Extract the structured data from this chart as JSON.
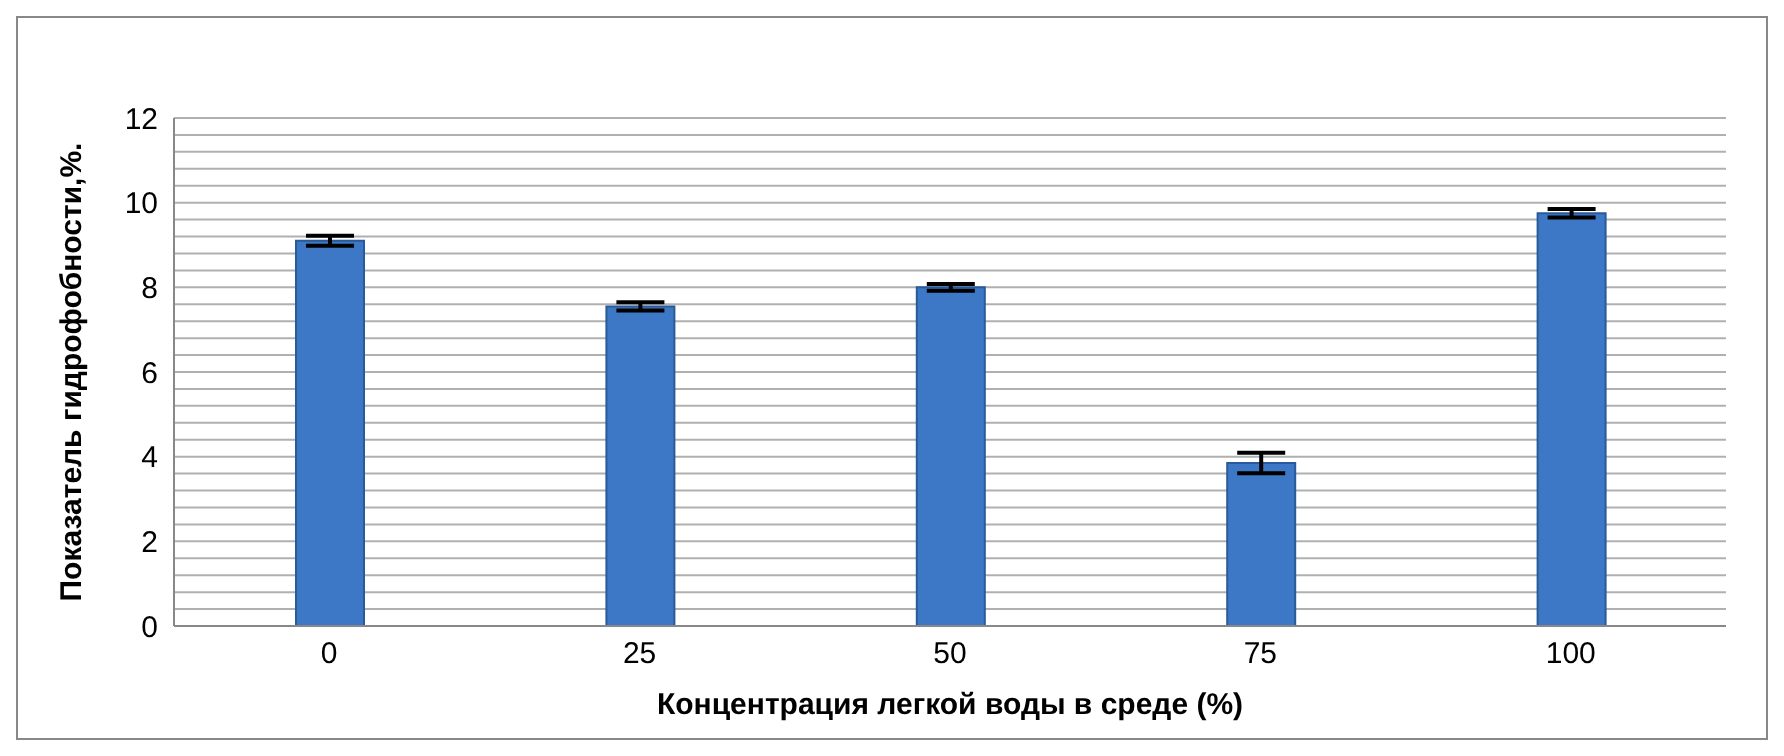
{
  "chart_data": {
    "type": "bar",
    "xlabel": "Концентрация легкой воды в среде (%)",
    "ylabel": "Показатель гидрофобности,%.",
    "categories": [
      "0",
      "25",
      "50",
      "75",
      "100"
    ],
    "values": [
      9.1,
      7.55,
      8.0,
      3.85,
      9.75
    ],
    "errors": [
      0.12,
      0.1,
      0.08,
      0.24,
      0.1
    ],
    "color": "#3c78c6",
    "ylim": [
      0,
      12
    ],
    "yticks": [
      0,
      {
        "value": 0.4,
        "label": null
      },
      {
        "value": 0.8,
        "label": null
      },
      {
        "value": 1.2,
        "label": null
      },
      {
        "value": 1.6,
        "label": null
      },
      2,
      {
        "value": 2.4,
        "label": null
      },
      {
        "value": 2.8,
        "label": null
      },
      {
        "value": 3.2,
        "label": null
      },
      {
        "value": 3.6,
        "label": null
      },
      4,
      {
        "value": 4.4,
        "label": null
      },
      {
        "value": 4.8,
        "label": null
      },
      {
        "value": 5.2,
        "label": null
      },
      {
        "value": 5.6,
        "label": null
      },
      6,
      {
        "value": 6.4,
        "label": null
      },
      {
        "value": 6.8,
        "label": null
      },
      {
        "value": 7.2,
        "label": null
      },
      {
        "value": 7.6,
        "label": null
      },
      8,
      {
        "value": 8.4,
        "label": null
      },
      {
        "value": 8.8,
        "label": null
      },
      {
        "value": 9.2,
        "label": null
      },
      {
        "value": 9.6,
        "label": null
      },
      10,
      {
        "value": 10.4,
        "label": null
      },
      {
        "value": 10.8,
        "label": null
      },
      {
        "value": 11.2,
        "label": null
      },
      {
        "value": 11.6,
        "label": null
      },
      12
    ],
    "grid": "y"
  }
}
